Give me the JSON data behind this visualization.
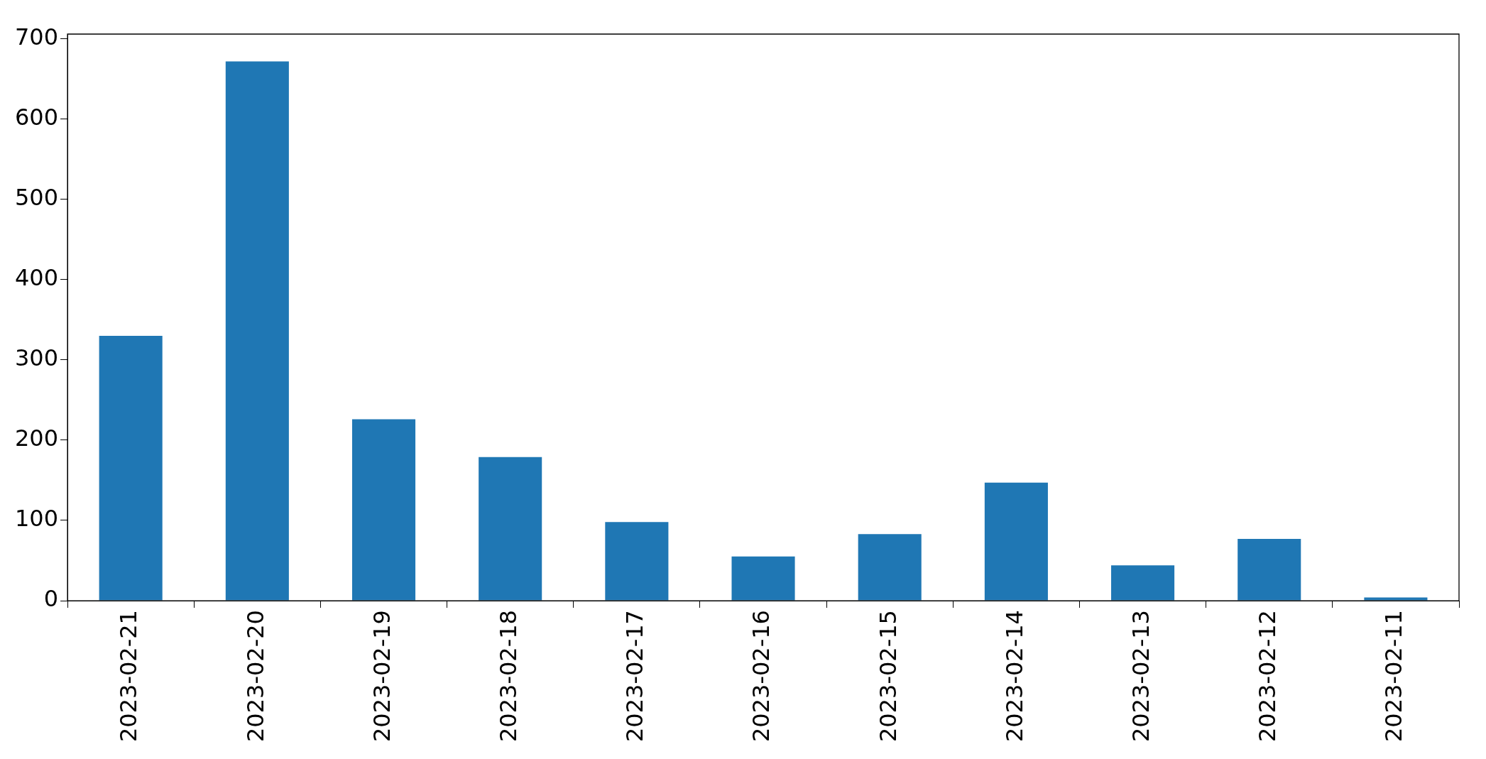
{
  "chart_data": {
    "type": "bar",
    "categories": [
      "2023-02-21",
      "2023-02-20",
      "2023-02-19",
      "2023-02-18",
      "2023-02-17",
      "2023-02-16",
      "2023-02-15",
      "2023-02-14",
      "2023-02-13",
      "2023-02-12",
      "2023-02-11"
    ],
    "values": [
      330,
      672,
      226,
      179,
      98,
      55,
      83,
      147,
      44,
      77,
      4
    ],
    "color": "#1f77b4",
    "ylim": [
      0,
      706
    ],
    "yticks": [
      0,
      100,
      200,
      300,
      400,
      500,
      600,
      700
    ],
    "grid": false,
    "legend": false
  }
}
